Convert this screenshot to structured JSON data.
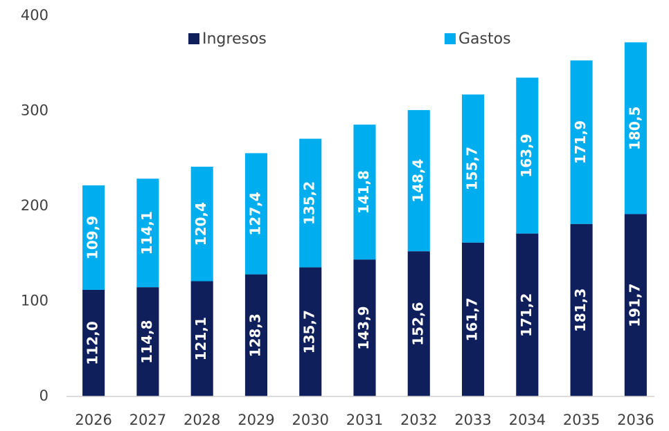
{
  "chart_data": {
    "type": "bar",
    "stacked": true,
    "categories": [
      "2026",
      "2027",
      "2028",
      "2029",
      "2030",
      "2031",
      "2032",
      "2033",
      "2034",
      "2035",
      "2036"
    ],
    "series": [
      {
        "name": "Ingresos",
        "color": "#0f1f5c",
        "values": [
          112.0,
          114.8,
          121.1,
          128.3,
          135.7,
          143.9,
          152.6,
          161.7,
          171.2,
          181.3,
          191.7
        ],
        "value_labels": [
          "112,0",
          "114,8",
          "121,1",
          "128,3",
          "135,7",
          "143,9",
          "152,6",
          "161,7",
          "171,2",
          "181,3",
          "191,7"
        ]
      },
      {
        "name": "Gastos",
        "color": "#00aeef",
        "values": [
          109.9,
          114.1,
          120.4,
          127.4,
          135.2,
          141.8,
          148.4,
          155.7,
          163.9,
          171.9,
          180.5
        ],
        "value_labels": [
          "109,9",
          "114,1",
          "120,4",
          "127,4",
          "135,2",
          "141,8",
          "148,4",
          "155,7",
          "163,9",
          "171,9",
          "180,5"
        ]
      }
    ],
    "ylim": [
      0,
      400
    ],
    "yticks": [
      0,
      100,
      200,
      300,
      400
    ],
    "grid": false,
    "legend": "top"
  }
}
